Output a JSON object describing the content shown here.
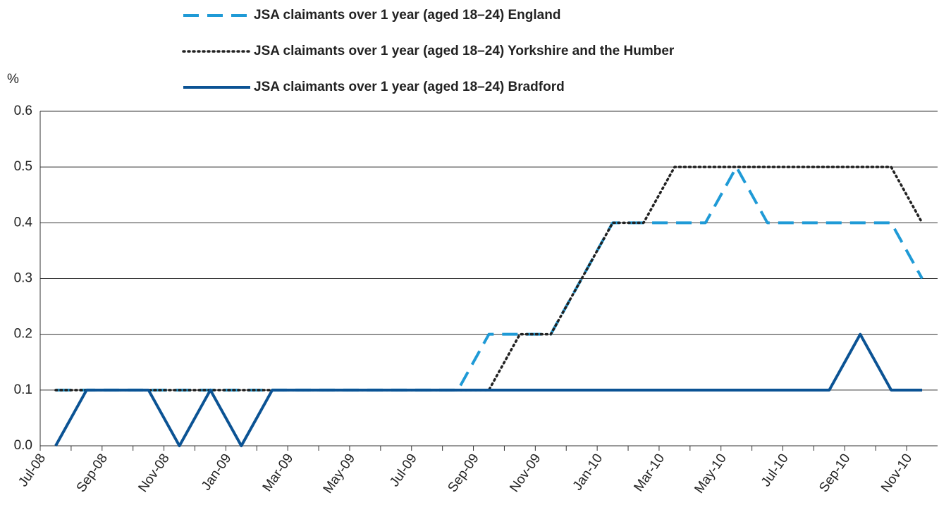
{
  "chart_data": {
    "type": "line",
    "y_axis_label": "%",
    "categories": [
      "Jul-08",
      null,
      "Sep-08",
      null,
      "Nov-08",
      null,
      "Jan-09",
      null,
      "Mar-09",
      null,
      "May-09",
      null,
      "Jul-09",
      null,
      "Sep-09",
      null,
      "Nov-09",
      null,
      "Jan-10",
      null,
      "Mar-10",
      null,
      "May-10",
      null,
      "Jul-10",
      null,
      "Sep-10",
      null,
      "Nov-10"
    ],
    "series": [
      {
        "name": "JSA claimants over 1 year (aged 18–24) England",
        "color": "#1f9ad6",
        "dash": "dashed",
        "values": [
          0.1,
          0.1,
          0.1,
          0.1,
          0.1,
          0.1,
          0.1,
          0.1,
          0.1,
          0.1,
          0.1,
          0.1,
          0.1,
          0.1,
          0.2,
          0.2,
          0.2,
          0.3,
          0.4,
          0.4,
          0.4,
          0.4,
          0.5,
          0.4,
          0.4,
          0.4,
          0.4,
          0.4,
          0.3
        ]
      },
      {
        "name": "JSA claimants over 1 year (aged 18–24) Yorkshire and the Humber",
        "color": "#222222",
        "dash": "dotted",
        "values": [
          0.1,
          0.1,
          0.1,
          0.1,
          0.1,
          0.1,
          0.1,
          0.1,
          0.1,
          0.1,
          0.1,
          0.1,
          0.1,
          0.1,
          0.1,
          0.2,
          0.2,
          0.3,
          0.4,
          0.4,
          0.5,
          0.5,
          0.5,
          0.5,
          0.5,
          0.5,
          0.5,
          0.5,
          0.4
        ]
      },
      {
        "name": "JSA claimants over 1 year (aged 18–24) Bradford",
        "color": "#0b5394",
        "dash": "solid",
        "values": [
          0,
          0.1,
          0.1,
          0.1,
          0,
          0.1,
          0,
          0.1,
          0.1,
          0.1,
          0.1,
          0.1,
          0.1,
          0.1,
          0.1,
          0.1,
          0.1,
          0.1,
          0.1,
          0.1,
          0.1,
          0.1,
          0.1,
          0.1,
          0.1,
          0.1,
          0.2,
          0.1,
          0.1
        ]
      }
    ],
    "ylim": [
      0,
      0.6
    ],
    "yticks": [
      {
        "value": 0,
        "label": "0.0"
      },
      0.1,
      0.2,
      0.3,
      0.4,
      0.5,
      0.6
    ],
    "grid": true,
    "legend": "top"
  }
}
